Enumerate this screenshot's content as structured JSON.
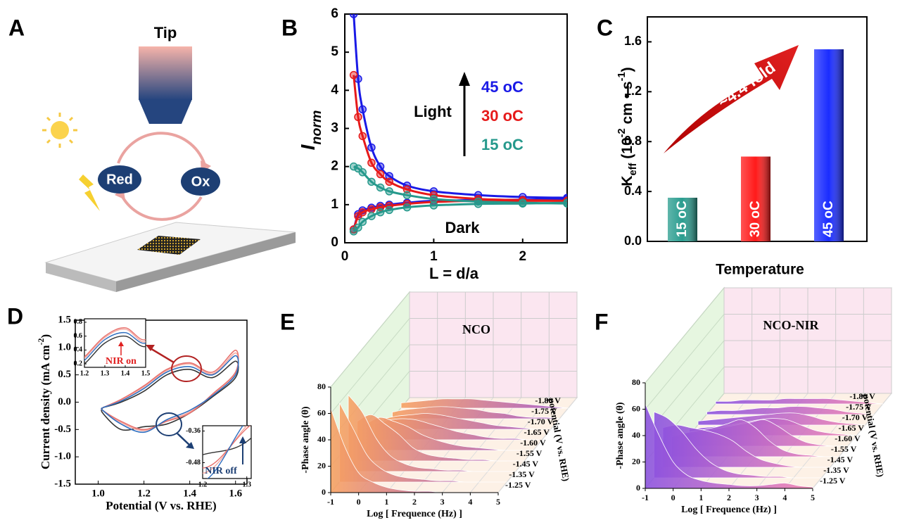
{
  "panel_a": {
    "label": "A",
    "tip": "Tip",
    "red": "Red",
    "ox": "Ox"
  },
  "chart_data": [
    {
      "type": "line",
      "panel_label": "B",
      "y_label_parts": [
        "I",
        "norm"
      ],
      "x_label": "L = d/a",
      "light_label": "Light",
      "dark_label": "Dark",
      "x": [
        0.1,
        0.15,
        0.2,
        0.3,
        0.4,
        0.5,
        0.7,
        1.0,
        1.5,
        2.0,
        2.5
      ],
      "xlim": [
        0,
        2.5
      ],
      "xticks": [
        0,
        1,
        2
      ],
      "ylim": [
        0,
        6
      ],
      "yticks": [
        0,
        1,
        2,
        3,
        4,
        5,
        6
      ],
      "series": [
        {
          "name": "45 oC",
          "color": "#1a1ae6",
          "values": [
            6,
            4.3,
            3.5,
            2.5,
            2.0,
            1.75,
            1.5,
            1.35,
            1.25,
            1.2,
            1.18
          ],
          "dark_values": [
            0.35,
            0.75,
            0.85,
            0.92,
            0.97,
            1.0,
            1.05,
            1.1,
            1.12,
            1.13,
            1.15
          ]
        },
        {
          "name": "30 oC",
          "color": "#e61a1a",
          "values": [
            4.4,
            3.3,
            2.8,
            2.1,
            1.8,
            1.6,
            1.4,
            1.25,
            1.15,
            1.12,
            1.1
          ],
          "dark_values": [
            0.35,
            0.7,
            0.8,
            0.88,
            0.93,
            0.97,
            1.02,
            1.07,
            1.1,
            1.1,
            1.1
          ]
        },
        {
          "name": "15 oC",
          "color": "#26998c",
          "values": [
            2.0,
            1.95,
            1.85,
            1.6,
            1.45,
            1.35,
            1.25,
            1.15,
            1.08,
            1.05,
            1.03
          ],
          "dark_values": [
            0.3,
            0.4,
            0.55,
            0.7,
            0.8,
            0.86,
            0.93,
            0.98,
            1.02,
            1.03,
            1.05
          ]
        }
      ]
    },
    {
      "type": "bar",
      "panel_label": "C",
      "y_label_parts": [
        "K",
        "eff",
        " (10",
        "-2",
        " cm • s",
        "-1",
        ")"
      ],
      "x_label": "Temperature",
      "annotation": "~4.4 fold",
      "categories": [
        "15 oC",
        "30 oC",
        "45 oC"
      ],
      "values": [
        0.35,
        0.68,
        1.54
      ],
      "colors": [
        "#2a9d8f",
        "#ff1a1a",
        "#1a2cff"
      ],
      "ylim": [
        0,
        1.8
      ],
      "yticks": [
        {
          "value": 0,
          "label": "0.0"
        },
        0.4,
        0.8,
        1.2,
        1.6
      ]
    },
    {
      "type": "loop",
      "panel_label": "D",
      "y_label_parts": [
        "Current density (mA cm",
        "-2",
        ")"
      ],
      "x_label": "Potential (V vs. RHE)",
      "x": [
        1.02,
        1.1,
        1.2,
        1.3,
        1.4,
        1.5,
        1.6,
        1.6,
        1.5,
        1.4,
        1.3,
        1.2,
        1.1,
        1.02,
        1.02
      ],
      "xlim": [
        0.9,
        1.65
      ],
      "xticks": [
        {
          "value": 1,
          "label": "1.0"
        },
        1.2,
        1.4,
        1.6
      ],
      "ylim": [
        -1.5,
        1.5
      ],
      "yticks": [
        -1.5,
        {
          "value": -1,
          "label": "-1.0"
        },
        -0.5,
        {
          "value": 0,
          "label": "0.0"
        },
        0.5,
        {
          "value": 1,
          "label": "1.0"
        },
        1.5
      ],
      "series": [
        {
          "color": "#333333",
          "values": [
            -0.1,
            0.0,
            0.2,
            0.5,
            0.6,
            0.45,
            0.75,
            0.45,
            0.1,
            -0.2,
            -0.4,
            -0.45,
            -0.5,
            -0.2,
            -0.1
          ]
        },
        {
          "color": "#f4a8a0",
          "values": [
            -0.1,
            0.04,
            0.28,
            0.58,
            0.7,
            0.52,
            0.9,
            0.52,
            0.13,
            -0.18,
            -0.34,
            -0.52,
            -0.37,
            -0.15,
            -0.1
          ]
        },
        {
          "color": "#e8736f",
          "values": [
            -0.1,
            0.05,
            0.3,
            0.6,
            0.72,
            0.55,
            0.95,
            0.55,
            0.15,
            -0.2,
            -0.35,
            -0.5,
            -0.35,
            -0.15,
            -0.1
          ]
        },
        {
          "color": "#2f6fc0",
          "values": [
            -0.1,
            0.02,
            0.25,
            0.55,
            0.65,
            0.5,
            0.85,
            0.5,
            0.12,
            -0.15,
            -0.32,
            -0.55,
            -0.4,
            -0.15,
            -0.1
          ]
        }
      ],
      "insets": [
        {
          "annotation": "NIR on",
          "xlim": [
            1.2,
            1.5
          ],
          "ylim": [
            0.15,
            0.85
          ],
          "xticks": [
            1.2,
            1.3,
            1.4,
            1.5
          ],
          "yticks": [
            0.2,
            0.4,
            0.6,
            0.8
          ]
        },
        {
          "annotation": "NIR off",
          "xlim": [
            1.2,
            1.31
          ],
          "ylim": [
            -0.54,
            -0.34
          ],
          "xticks": [
            1.2,
            1.3
          ],
          "yticks": [
            -0.48,
            -0.36
          ]
        }
      ]
    },
    {
      "type": "waterfall",
      "panel_label": "E",
      "title": "NCO",
      "y_label": "-Phase angle (θ)",
      "x_label": "Log [ Frequence (Hz) ]",
      "z_label": "potential (V vs. RHE)",
      "colors": [
        "#f8a060",
        "#a050c8"
      ],
      "x": [
        -1,
        -0.5,
        0,
        0.5,
        1,
        1.5,
        2,
        2.5,
        3,
        3.5,
        4,
        4.5,
        5
      ],
      "xlim": [
        -1,
        5
      ],
      "xticks": [
        -1,
        0,
        1,
        2,
        3,
        4,
        5
      ],
      "ylim": [
        0,
        80
      ],
      "yticks": [
        0,
        20,
        40,
        60,
        80
      ],
      "series": [
        {
          "name": "-1.25 V",
          "values": [
            64,
            35,
            15,
            8,
            4,
            2,
            1,
            1,
            0,
            0,
            0,
            0,
            0
          ]
        },
        {
          "name": "-1.35 V",
          "values": [
            60,
            40,
            20,
            10,
            5,
            3,
            2,
            1,
            1,
            0,
            0,
            0,
            0
          ]
        },
        {
          "name": "-1.45 V",
          "values": [
            58,
            45,
            25,
            12,
            6,
            3,
            2,
            1,
            1,
            0,
            0,
            0,
            0
          ]
        },
        {
          "name": "-1.55 V",
          "values": [
            30,
            35,
            28,
            20,
            10,
            5,
            3,
            2,
            1,
            1,
            0,
            0,
            0
          ]
        },
        {
          "name": "-1.60 V",
          "values": [
            20,
            25,
            22,
            18,
            12,
            8,
            5,
            3,
            2,
            1,
            0,
            0,
            0
          ]
        },
        {
          "name": "-1.65 V",
          "values": [
            12,
            15,
            16,
            15,
            12,
            9,
            6,
            4,
            2,
            1,
            1,
            0,
            0
          ]
        },
        {
          "name": "-1.70 V",
          "values": [
            8,
            10,
            11,
            12,
            11,
            9,
            7,
            5,
            3,
            2,
            1,
            0,
            0
          ]
        },
        {
          "name": "-1.75 V",
          "values": [
            5,
            7,
            8,
            9,
            9,
            8,
            7,
            5,
            4,
            2,
            1,
            1,
            0
          ]
        },
        {
          "name": "-1.80 V",
          "values": [
            4,
            5,
            6,
            7,
            7,
            7,
            6,
            5,
            4,
            3,
            2,
            1,
            0
          ]
        }
      ]
    },
    {
      "type": "waterfall",
      "panel_label": "F",
      "title": "NCO-NIR",
      "y_label": "-Phase angle (θ)",
      "x_label": "Log [ Frequence (Hz) ]",
      "z_label": "potential (V vs. RHE)",
      "colors": [
        "#8a50e0",
        "#f080b0"
      ],
      "x": [
        -1,
        -0.5,
        0,
        0.5,
        1,
        1.5,
        2,
        2.5,
        3,
        3.5,
        4,
        4.5,
        5
      ],
      "xlim": [
        -1,
        5
      ],
      "xticks": [
        -1,
        0,
        1,
        2,
        3,
        4,
        5
      ],
      "ylim": [
        0,
        80
      ],
      "yticks": [
        0,
        20,
        40,
        60,
        80
      ],
      "series": [
        {
          "name": "-1.25 V",
          "values": [
            64,
            40,
            20,
            10,
            6,
            4,
            3,
            2,
            2,
            3,
            4,
            2,
            1
          ]
        },
        {
          "name": "-1.35 V",
          "values": [
            50,
            45,
            35,
            22,
            12,
            6,
            3,
            2,
            1,
            1,
            0,
            0,
            0
          ]
        },
        {
          "name": "-1.45 V",
          "values": [
            30,
            32,
            30,
            28,
            25,
            20,
            12,
            6,
            3,
            1,
            0,
            0,
            0
          ]
        },
        {
          "name": "-1.55 V",
          "values": [
            15,
            18,
            20,
            22,
            25,
            28,
            22,
            12,
            5,
            2,
            1,
            0,
            0
          ]
        },
        {
          "name": "-1.60 V",
          "values": [
            8,
            10,
            12,
            14,
            16,
            18,
            20,
            15,
            8,
            3,
            1,
            0,
            0
          ]
        },
        {
          "name": "-1.65 V",
          "values": [
            5,
            6,
            7,
            8,
            10,
            12,
            13,
            12,
            8,
            4,
            2,
            1,
            0
          ]
        },
        {
          "name": "-1.70 V",
          "values": [
            3,
            4,
            5,
            6,
            7,
            8,
            9,
            9,
            7,
            4,
            2,
            1,
            0
          ]
        },
        {
          "name": "-1.75 V",
          "values": [
            2,
            3,
            3,
            4,
            5,
            5,
            6,
            6,
            5,
            4,
            2,
            1,
            0
          ]
        },
        {
          "name": "-1.80 V",
          "values": [
            2,
            2,
            3,
            3,
            3,
            4,
            4,
            4,
            4,
            3,
            2,
            1,
            0
          ]
        }
      ]
    }
  ]
}
